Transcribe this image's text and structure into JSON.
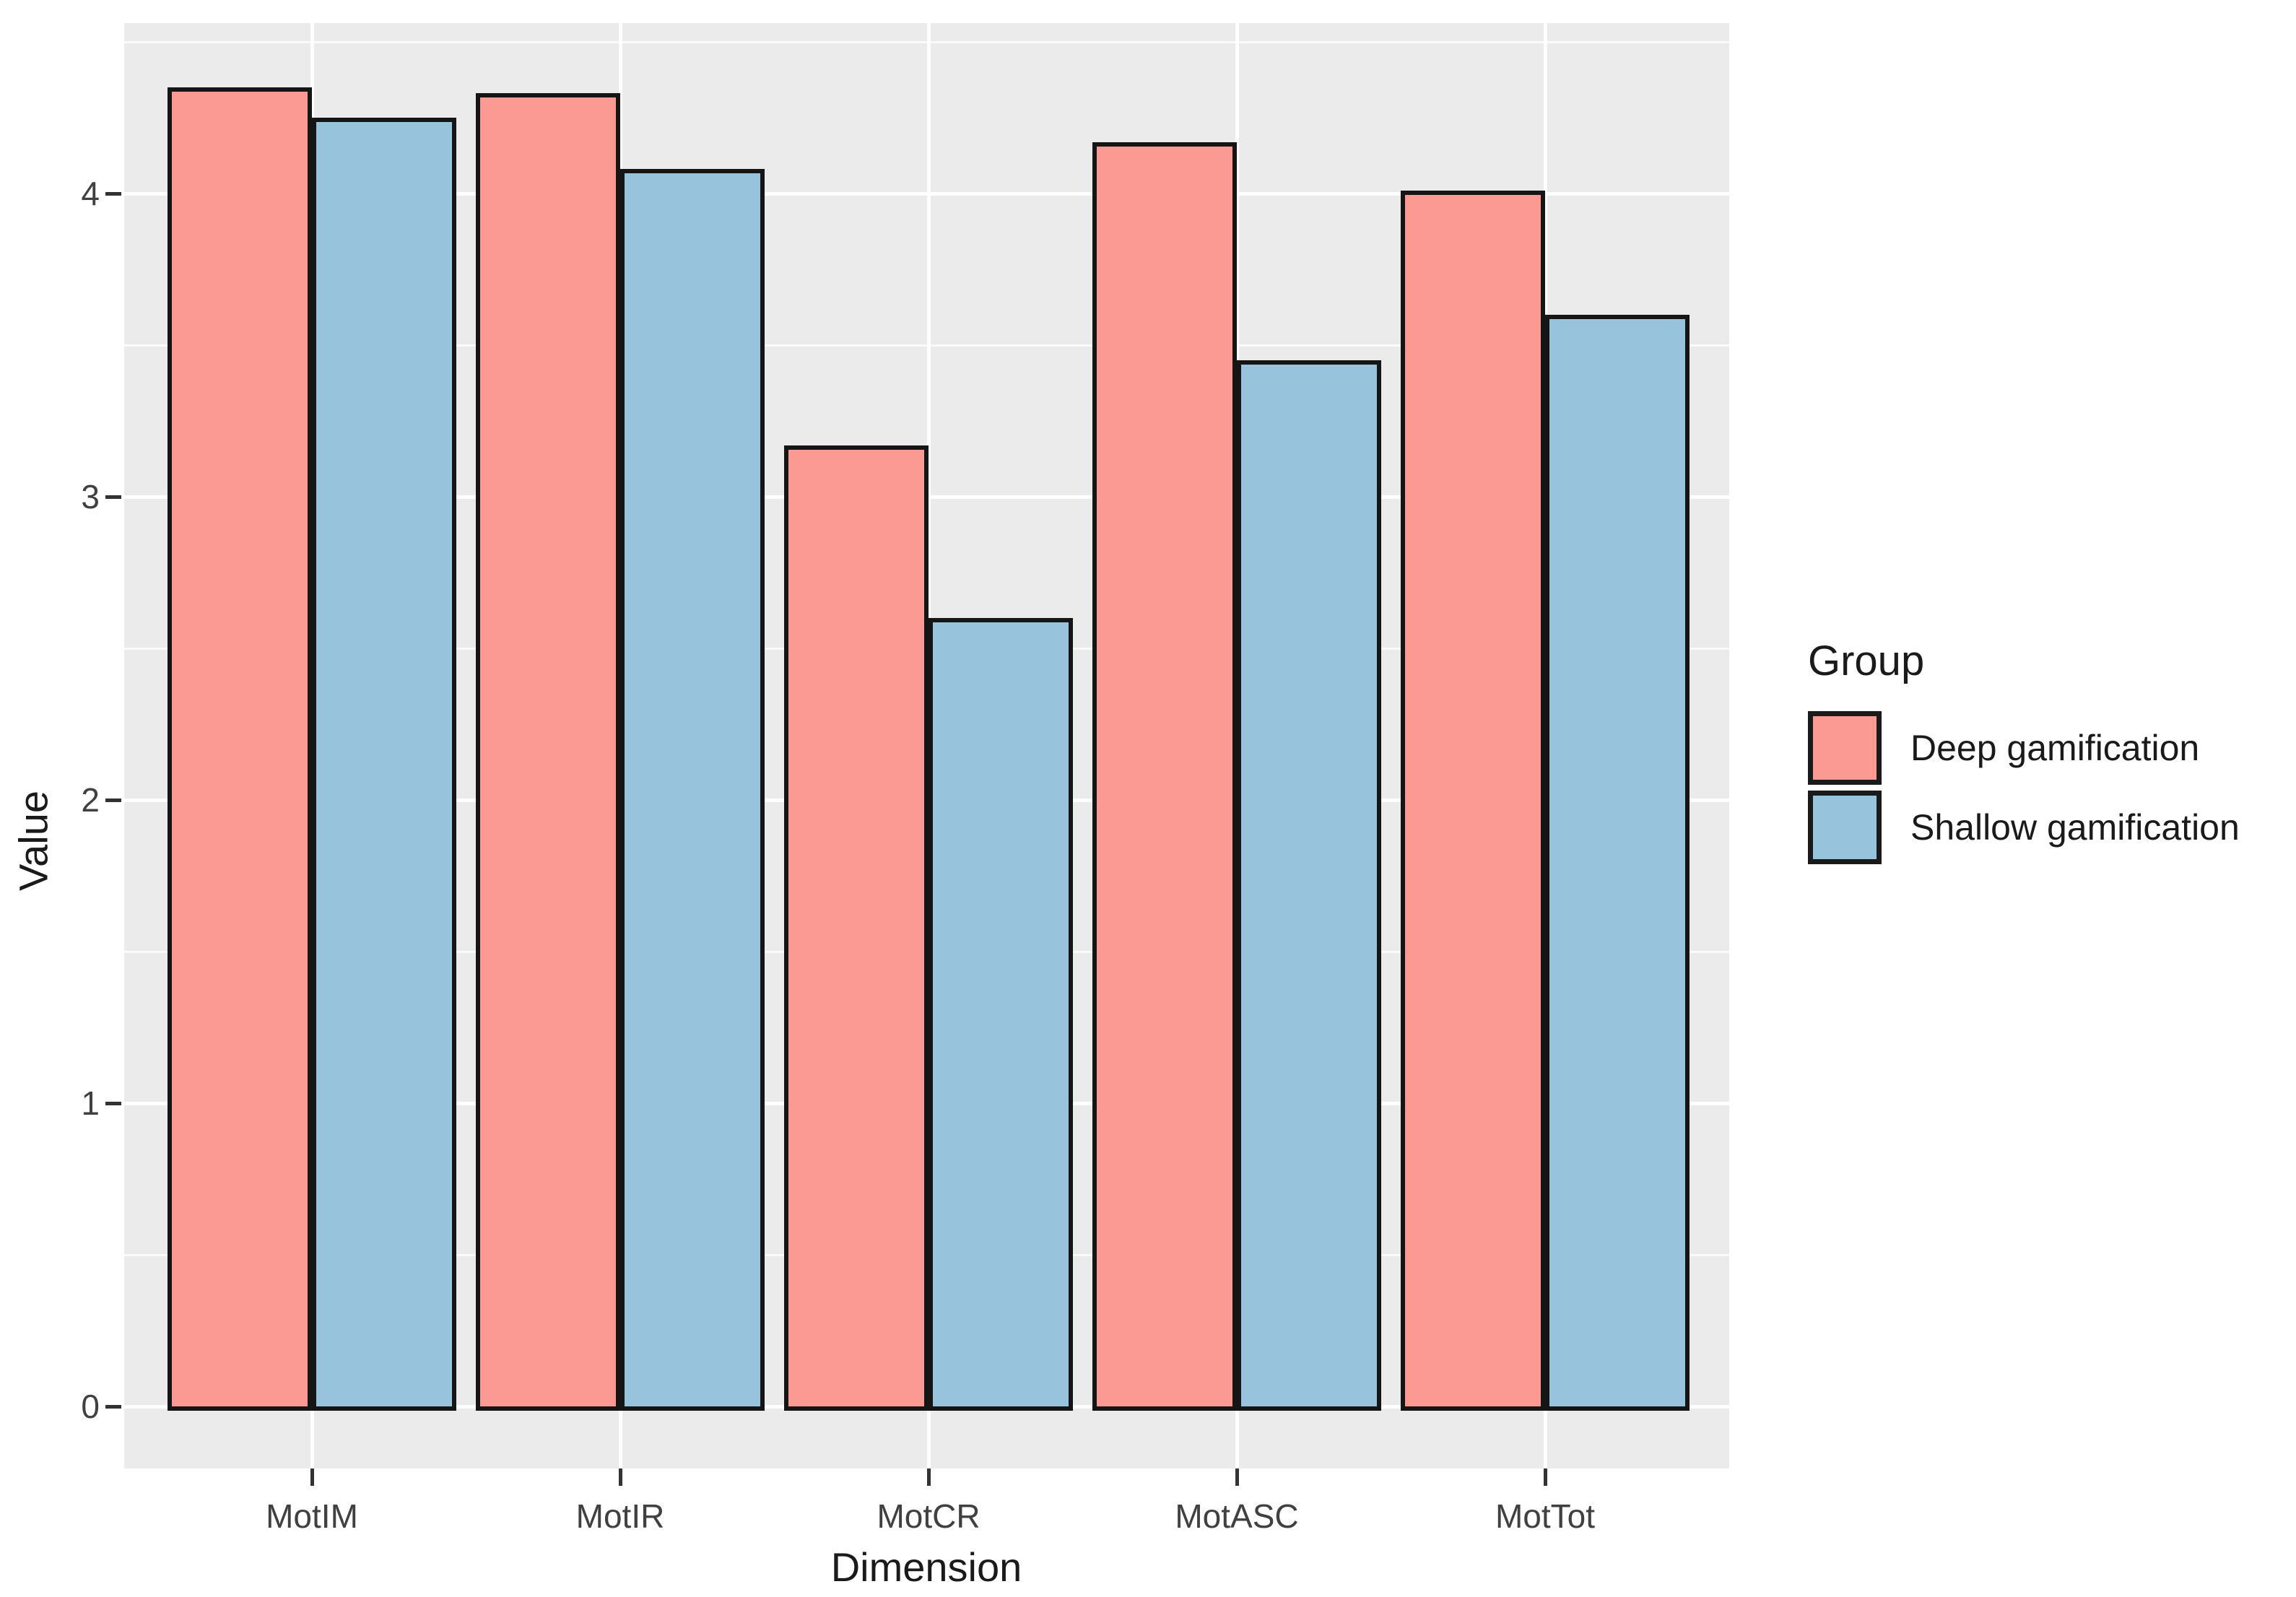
{
  "chart_data": {
    "type": "bar",
    "title": "",
    "xlabel": "Dimension",
    "ylabel": "Value",
    "categories": [
      "MotIM",
      "MotIR",
      "MotCR",
      "MotASC",
      "MotTot"
    ],
    "series": [
      {
        "name": "Deep gamification",
        "color": "#FA9A92",
        "values": [
          4.35,
          4.33,
          3.17,
          4.17,
          4.01
        ]
      },
      {
        "name": "Shallow gamification",
        "color": "#97C3DD",
        "values": [
          4.25,
          4.08,
          2.6,
          3.45,
          3.6
        ]
      }
    ],
    "ylim": [
      0,
      4.55
    ],
    "yticks": [
      0,
      1,
      2,
      3,
      4
    ],
    "minor_yticks": [
      0.5,
      1.5,
      2.5,
      3.5,
      4.5
    ],
    "grid": "white major and minor gridlines on gray panel",
    "legend_title": "Group",
    "legend_position": "right",
    "panel_bg": "#EBEBEB",
    "grid_color": "#FFFFFF",
    "bar_border_color": "#151515",
    "axis_text_color": "#404040",
    "title_text_color": "#1A1A1A"
  }
}
